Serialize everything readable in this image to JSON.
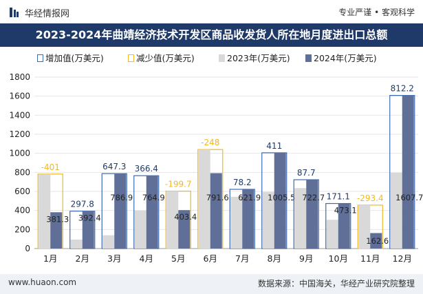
{
  "header": {
    "site_name": "华经情报网",
    "slogan": "专业严谨 • 客观科学"
  },
  "title": "2023-2024年曲靖经济技术开发区商品收发货人所在地月度进出口总额",
  "colors": {
    "title_bg": "#1f3a68",
    "increase": "#3b6bb0",
    "decrease": "#f2b81c",
    "series2023": "#d9d9d9",
    "series2024": "#5f6f97",
    "label_up": "#1f3a68",
    "label_down": "#f2b81c"
  },
  "chart_data": {
    "type": "bar",
    "categories": [
      "1月",
      "2月",
      "3月",
      "4月",
      "5月",
      "6月",
      "7月",
      "8月",
      "9月",
      "10月",
      "11月",
      "12月"
    ],
    "series": [
      {
        "name": "2023年(万美元)",
        "values": [
          782.2,
          94.6,
          139.6,
          398.5,
          603.1,
          1039.6,
          543.7,
          594.5,
          635.0,
          301.9,
          456.0,
          795.5
        ]
      },
      {
        "name": "2024年(万美元)",
        "values": [
          381.3,
          392.4,
          786.9,
          764.9,
          403.4,
          791.6,
          621.9,
          1005.5,
          722.7,
          473.1,
          162.6,
          1607.7
        ]
      }
    ],
    "change": [
      {
        "type": "decrease",
        "value": "-401"
      },
      {
        "type": "increase",
        "value": "297.8"
      },
      {
        "type": "increase",
        "value": "647.3"
      },
      {
        "type": "increase",
        "value": "366.4"
      },
      {
        "type": "decrease",
        "value": "-199.7"
      },
      {
        "type": "decrease",
        "value": "-248"
      },
      {
        "type": "increase",
        "value": "78.2"
      },
      {
        "type": "increase",
        "value": "411"
      },
      {
        "type": "increase",
        "value": "87.7"
      },
      {
        "type": "increase",
        "value": "171.1"
      },
      {
        "type": "decrease",
        "value": "-293.4"
      },
      {
        "type": "increase",
        "value": "812.2"
      }
    ],
    "value_labels_2024": [
      "381.3",
      "392.4",
      "786.9",
      "764.9",
      "403.4",
      "791.6",
      "621.9",
      "1005.5",
      "722.7",
      "473.1",
      "162.6",
      "1607.7"
    ],
    "legend": [
      "增加值(万美元)",
      "减少值(万美元)",
      "2023年(万美元)",
      "2024年(万美元)"
    ],
    "yticks": [
      0,
      200,
      400,
      600,
      800,
      1000,
      1200,
      1400,
      1600,
      1800
    ],
    "ylim": [
      0,
      1800
    ]
  },
  "footer": {
    "website": "www.huaon.com",
    "source": "数据来源：中国海关，华经产业研究院整理"
  }
}
